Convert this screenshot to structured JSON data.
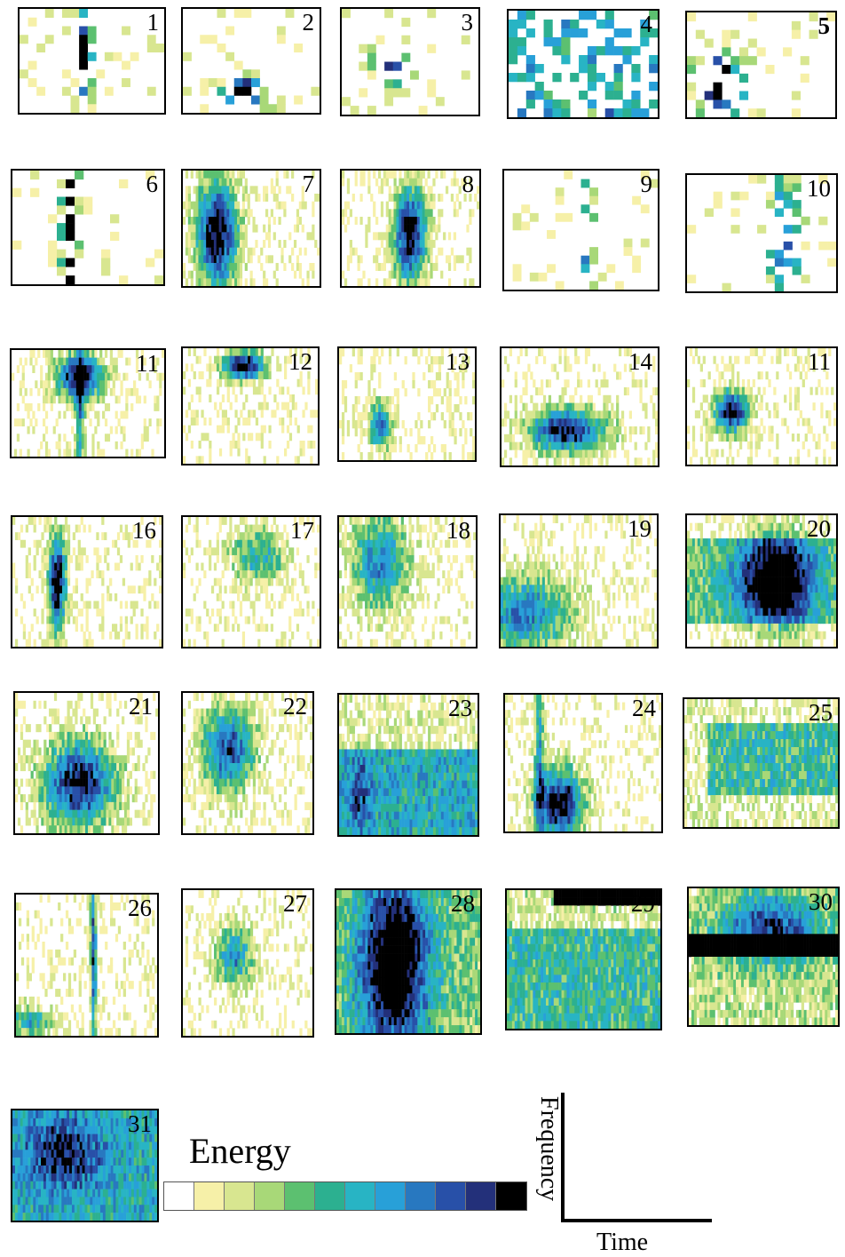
{
  "panels": [
    "1",
    "2",
    "3",
    "4",
    "5",
    "6",
    "7",
    "8",
    "9",
    "10",
    "11",
    "12",
    "13",
    "14",
    "11",
    "16",
    "17",
    "18",
    "19",
    "20",
    "21",
    "22",
    "23",
    "24",
    "25",
    "26",
    "27",
    "28",
    "29",
    "30",
    "31"
  ],
  "colorbar": {
    "label": "Energy",
    "colors": [
      "#ffffff",
      "#f6f0a8",
      "#d8e690",
      "#a8d878",
      "#5cc070",
      "#2cb090",
      "#28b4c4",
      "#28a0d8",
      "#2878c0",
      "#2850a8",
      "#23307a",
      "#000000"
    ]
  },
  "axes": {
    "y_label": "Frequency",
    "x_label": "Time"
  }
}
